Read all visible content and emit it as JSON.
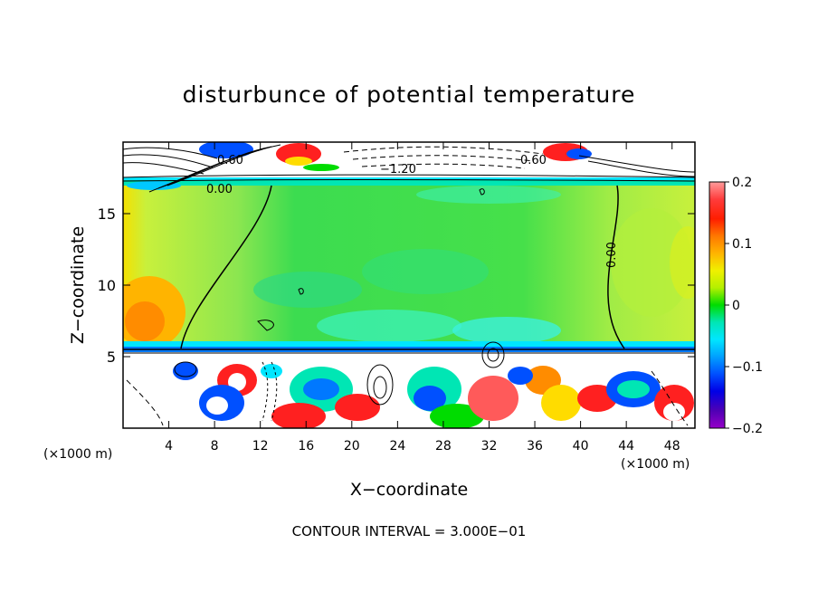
{
  "chart_data": {
    "type": "heatmap",
    "title": "disturbunce of potential temperature",
    "xlabel": "X−coordinate",
    "ylabel": "Z−coordinate",
    "x_unit": "(×1000 m)",
    "y_unit": "(×1000 m)",
    "xlim": [
      0,
      50
    ],
    "ylim": [
      0,
      20
    ],
    "x_ticks": [
      4,
      8,
      12,
      16,
      20,
      24,
      28,
      32,
      36,
      40,
      44,
      48
    ],
    "y_ticks": [
      5,
      10,
      15
    ],
    "colorbar": {
      "min": -0.2,
      "max": 0.2,
      "tick_values": [
        0.2,
        0.1,
        0,
        -0.1,
        -0.2
      ],
      "tick_labels": [
        "0.2",
        "0.1",
        "0",
        "−0.1",
        "−0.2"
      ],
      "colors": [
        "#ff9c9c",
        "#ff0000",
        "#ff6a00",
        "#ffb400",
        "#f0f000",
        "#b4f000",
        "#00dc00",
        "#00e6b4",
        "#00e6ff",
        "#00b4ff",
        "#0064ff",
        "#0000e6",
        "#0000a0",
        "#6400c8",
        "#9600c8"
      ]
    },
    "contour_labels": [
      {
        "text": "0.60",
        "x": 20.5,
        "y": 18.9
      },
      {
        "text": "0.60",
        "x": 35,
        "y": 18.9
      },
      {
        "text": "−1.20",
        "x": 24,
        "y": 18.2
      },
      {
        "text": "0.00",
        "x": 7,
        "y": 16.6
      },
      {
        "text": "0.00",
        "x": 43,
        "y": 11.5
      }
    ],
    "footer": "CONTOUR INTERVAL = 3.000E−01"
  },
  "colors": {
    "background": "#c8f06e",
    "mid_green": "#50e650",
    "cyan": "#3cf0dc",
    "blue": "#0050ff",
    "red": "#ff2020",
    "white": "#ffffff"
  }
}
